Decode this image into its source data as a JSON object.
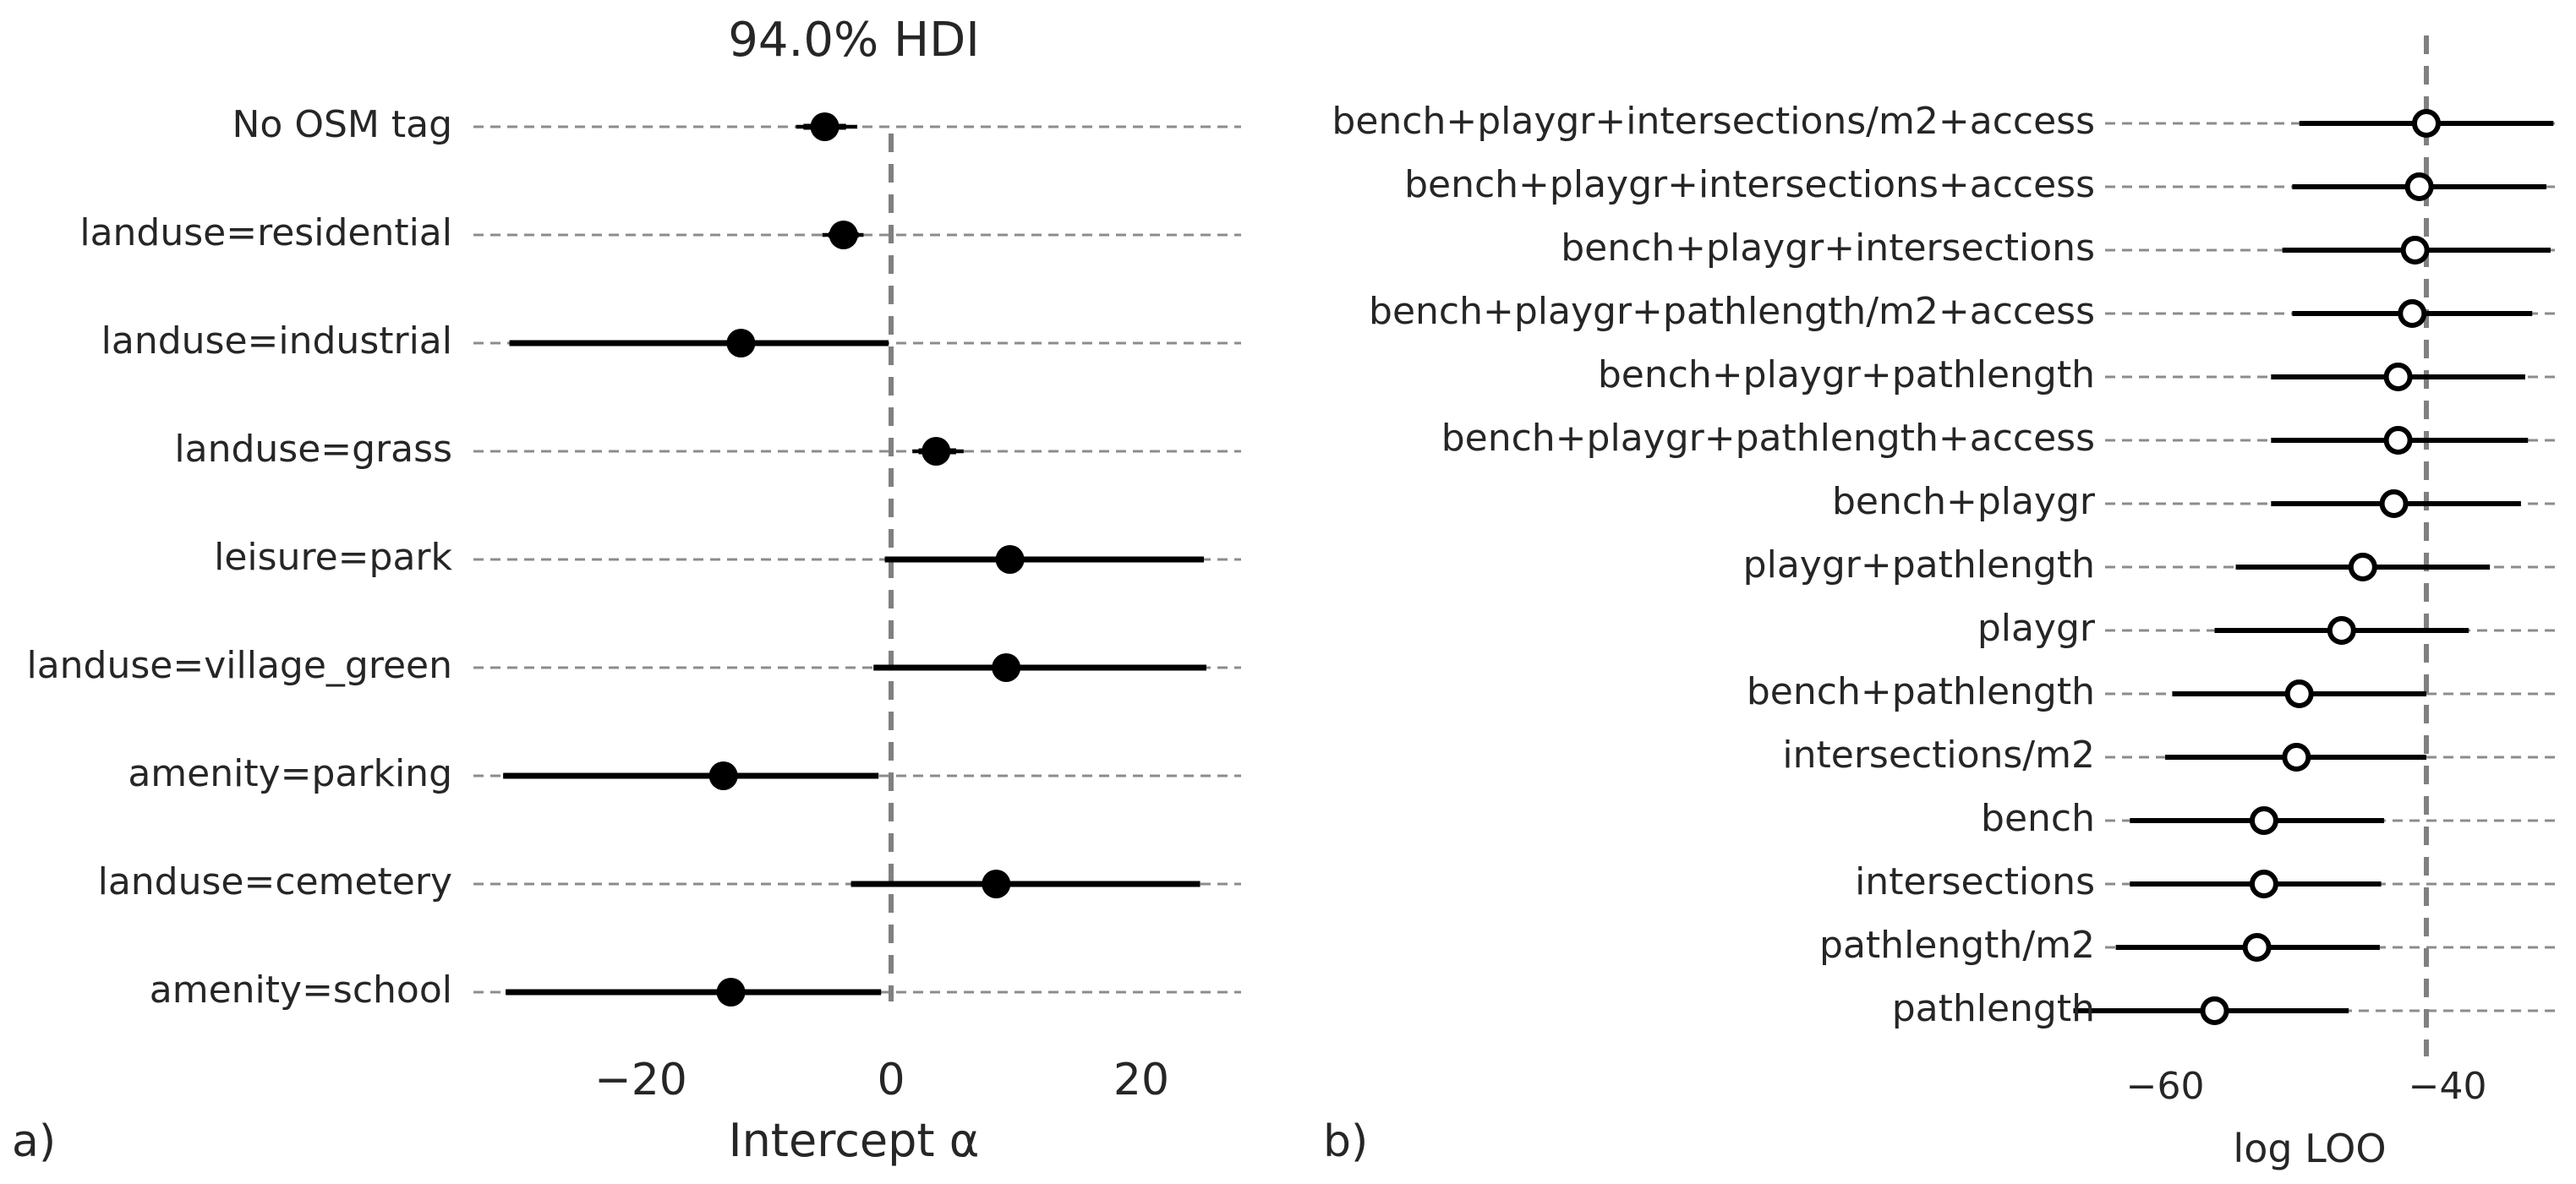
{
  "chart_data": [
    {
      "type": "forest",
      "panel_label": "a)",
      "title": "94.0% HDI",
      "xlabel": "Intercept α",
      "ylabel": "",
      "xlim": [
        -32,
        28
      ],
      "xticks": [
        -20,
        0,
        20
      ],
      "xtick_labels": [
        "−20",
        "0",
        "20"
      ],
      "reference_line": 0,
      "marker": "filled",
      "grid": "horizontal dashed",
      "categories": [
        "No OSM tag",
        "landuse=residential",
        "landuse=industrial",
        "landuse=grass",
        "leisure=park",
        "landuse=village_green",
        "amenity=parking",
        "landuse=cemetery",
        "amenity=school"
      ],
      "points": [
        {
          "mean": -5.3,
          "hdi": [
            -7.6,
            -2.7
          ],
          "inner": [
            -7.0,
            -3.6
          ]
        },
        {
          "mean": -3.8,
          "hdi": [
            -5.5,
            -2.2
          ],
          "inner": [
            -5.0,
            -2.6
          ]
        },
        {
          "mean": -12.0,
          "hdi": [
            -30.5,
            -0.2
          ],
          "inner": [
            -30.5,
            -0.2
          ]
        },
        {
          "mean": 3.6,
          "hdi": [
            1.7,
            5.8
          ],
          "inner": [
            2.2,
            5.2
          ]
        },
        {
          "mean": 9.5,
          "hdi": [
            -0.5,
            25.0
          ],
          "inner": [
            -0.5,
            25.0
          ]
        },
        {
          "mean": 9.2,
          "hdi": [
            -1.4,
            25.2
          ],
          "inner": [
            -1.4,
            25.2
          ]
        },
        {
          "mean": -13.4,
          "hdi": [
            -31.0,
            -1.0
          ],
          "inner": [
            -31.0,
            -1.0
          ]
        },
        {
          "mean": 8.4,
          "hdi": [
            -3.2,
            24.7
          ],
          "inner": [
            -3.2,
            24.7
          ]
        },
        {
          "mean": -12.8,
          "hdi": [
            -30.8,
            -0.8
          ],
          "inner": [
            -30.8,
            -0.8
          ]
        }
      ]
    },
    {
      "type": "forest",
      "panel_label": "b)",
      "title": "",
      "xlabel": "log LOO",
      "ylabel": "",
      "xlim": [
        -68,
        -31
      ],
      "xticks": [
        -60,
        -40
      ],
      "xtick_labels": [
        "−60",
        "−40"
      ],
      "reference_line": -41.5,
      "marker": "open",
      "grid": "horizontal dashed",
      "categories": [
        "bench+playgr+intersections/m2+access",
        "bench+playgr+intersections+access",
        "bench+playgr+intersections",
        "bench+playgr+pathlength/m2+access",
        "bench+playgr+pathlength",
        "bench+playgr+pathlength+access",
        "bench+playgr",
        "playgr+pathlength",
        "playgr",
        "bench+pathlength",
        "intersections/m2",
        "bench",
        "intersections",
        "pathlength/m2",
        "pathlength"
      ],
      "points": [
        {
          "mean": -41.5,
          "low": -50.5,
          "high": -32.5
        },
        {
          "mean": -42.0,
          "low": -51.0,
          "high": -33.0
        },
        {
          "mean": -42.3,
          "low": -51.7,
          "high": -32.7
        },
        {
          "mean": -42.5,
          "low": -51.0,
          "high": -34.0
        },
        {
          "mean": -43.5,
          "low": -52.5,
          "high": -34.5
        },
        {
          "mean": -43.5,
          "low": -52.5,
          "high": -34.3
        },
        {
          "mean": -43.8,
          "low": -52.5,
          "high": -34.8
        },
        {
          "mean": -46.0,
          "low": -55.0,
          "high": -37.0
        },
        {
          "mean": -47.5,
          "low": -56.5,
          "high": -38.5
        },
        {
          "mean": -50.5,
          "low": -59.5,
          "high": -41.5
        },
        {
          "mean": -50.7,
          "low": -60.0,
          "high": -41.5
        },
        {
          "mean": -53.0,
          "low": -62.5,
          "high": -44.5
        },
        {
          "mean": -53.0,
          "low": -62.5,
          "high": -44.7
        },
        {
          "mean": -53.5,
          "low": -63.5,
          "high": -44.8
        },
        {
          "mean": -56.5,
          "low": -66.5,
          "high": -47.0
        }
      ]
    }
  ]
}
